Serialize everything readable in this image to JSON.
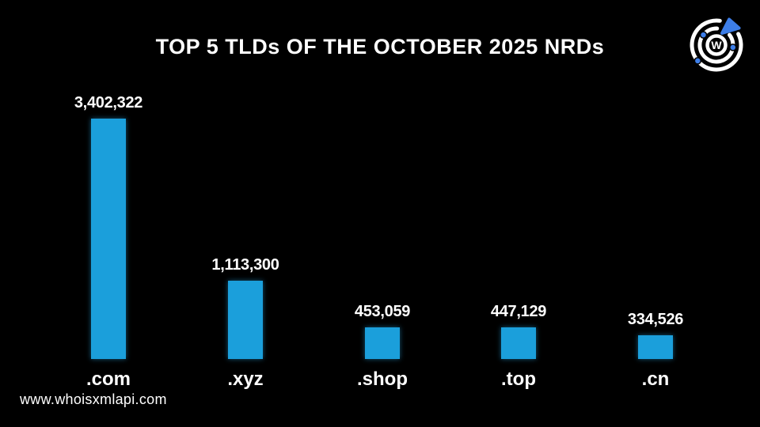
{
  "title": "TOP 5 TLDs OF THE OCTOBER 2025 NRDs",
  "footer": {
    "url": "www.whoisxmlapi.com"
  },
  "logo": {
    "letter": "W"
  },
  "colors": {
    "background": "#000000",
    "bar": "#1B9FDB",
    "text": "#FFFFFF",
    "logo_blue": "#3D7EE8"
  },
  "chart_data": {
    "type": "bar",
    "title": "TOP 5 TLDs OF THE OCTOBER 2025 NRDs",
    "categories": [
      ".com",
      ".xyz",
      ".shop",
      ".top",
      ".cn"
    ],
    "values": [
      3402322,
      1113300,
      453059,
      447129,
      334526
    ],
    "value_labels": [
      "3,402,322",
      "1,113,300",
      "453,059",
      "447,129",
      "334,526"
    ],
    "xlabel": "",
    "ylabel": "",
    "ylim": [
      0,
      3402322
    ],
    "grid": false,
    "legend": false,
    "bar_color": "#1B9FDB",
    "background": "#000000"
  }
}
